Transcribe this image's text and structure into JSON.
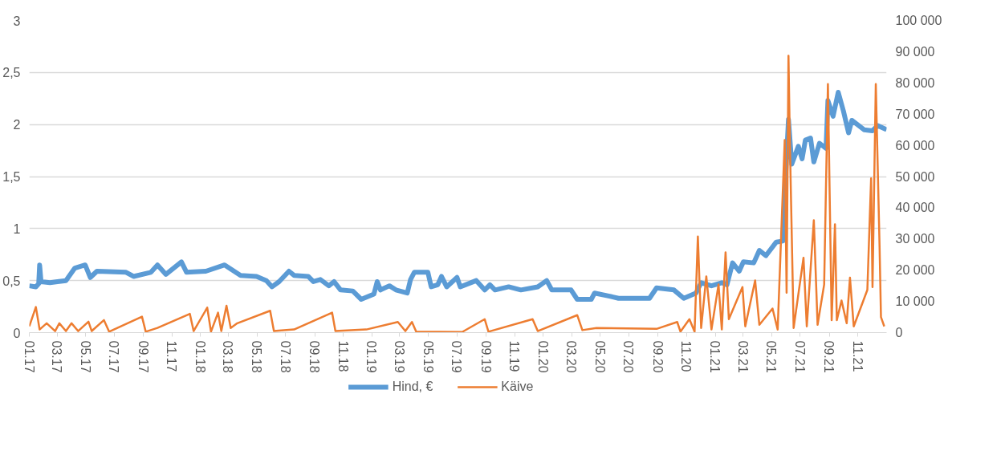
{
  "chart_data": {
    "type": "line",
    "grid": "y",
    "legend": "bottom",
    "xlim": [
      "2017-01-01",
      "2022-01-01"
    ],
    "xticks": [
      {
        "value": "2017-01-01",
        "label": "01.17"
      },
      {
        "value": "2017-03-01",
        "label": "03.17"
      },
      {
        "value": "2017-05-01",
        "label": "05.17"
      },
      {
        "value": "2017-07-01",
        "label": "07.17"
      },
      {
        "value": "2017-09-01",
        "label": "09.17"
      },
      {
        "value": "2017-11-01",
        "label": "11.17"
      },
      {
        "value": "2018-01-01",
        "label": "01.18"
      },
      {
        "value": "2018-03-01",
        "label": "03.18"
      },
      {
        "value": "2018-05-01",
        "label": "05.18"
      },
      {
        "value": "2018-07-01",
        "label": "07.18"
      },
      {
        "value": "2018-09-01",
        "label": "09.18"
      },
      {
        "value": "2018-11-01",
        "label": "11.18"
      },
      {
        "value": "2019-01-01",
        "label": "01.19"
      },
      {
        "value": "2019-03-01",
        "label": "03.19"
      },
      {
        "value": "2019-05-01",
        "label": "05.19"
      },
      {
        "value": "2019-07-01",
        "label": "07.19"
      },
      {
        "value": "2019-09-01",
        "label": "09.19"
      },
      {
        "value": "2019-11-01",
        "label": "11.19"
      },
      {
        "value": "2020-01-01",
        "label": "01.20"
      },
      {
        "value": "2020-03-01",
        "label": "03.20"
      },
      {
        "value": "2020-05-01",
        "label": "05.20"
      },
      {
        "value": "2020-07-01",
        "label": "07.20"
      },
      {
        "value": "2020-09-01",
        "label": "09.20"
      },
      {
        "value": "2020-11-01",
        "label": "11.20"
      },
      {
        "value": "2021-01-01",
        "label": "01.21"
      },
      {
        "value": "2021-03-01",
        "label": "03.21"
      },
      {
        "value": "2021-05-01",
        "label": "05.21"
      },
      {
        "value": "2021-07-01",
        "label": "07.21"
      },
      {
        "value": "2021-09-01",
        "label": "09.21"
      },
      {
        "value": "2021-11-01",
        "label": "11.21"
      }
    ],
    "ylim": [
      0,
      3
    ],
    "yticks": [
      0,
      {
        "value": 0.5,
        "label": "0,5"
      },
      1,
      {
        "value": 1.5,
        "label": "1,5"
      },
      2,
      {
        "value": 2.5,
        "label": "2,5"
      },
      3
    ],
    "y2lim": [
      0,
      100000
    ],
    "y2ticks": [
      {
        "value": 0,
        "label": "0"
      },
      {
        "value": 10000,
        "label": "10 000"
      },
      {
        "value": 20000,
        "label": "20 000"
      },
      {
        "value": 30000,
        "label": "30 000"
      },
      {
        "value": 40000,
        "label": "40 000"
      },
      {
        "value": 50000,
        "label": "50 000"
      },
      {
        "value": 60000,
        "label": "60 000"
      },
      {
        "value": 70000,
        "label": "70 000"
      },
      {
        "value": 80000,
        "label": "80 000"
      },
      {
        "value": 90000,
        "label": "90 000"
      },
      {
        "value": 100000,
        "label": "100 000"
      }
    ],
    "series": [
      {
        "name": "Hind, €",
        "color": "#5b9bd5",
        "x": [
          "2017-01-01",
          "2017-01-15",
          "2017-01-21",
          "2017-01-23",
          "2017-01-26",
          "2017-02-14",
          "2017-03-02",
          "2017-03-20",
          "2017-04-08",
          "2017-04-30",
          "2017-05-11",
          "2017-05-25",
          "2017-07-26",
          "2017-08-11",
          "2017-09-17",
          "2017-10-01",
          "2017-10-19",
          "2017-11-21",
          "2017-12-02",
          "2018-01-12",
          "2018-02-21",
          "2018-03-27",
          "2018-04-30",
          "2018-05-21",
          "2018-06-02",
          "2018-06-17",
          "2018-07-08",
          "2018-07-19",
          "2018-08-18",
          "2018-08-29",
          "2018-09-13",
          "2018-10-01",
          "2018-10-12",
          "2018-10-26",
          "2018-11-21",
          "2018-12-09",
          "2019-01-05",
          "2019-01-12",
          "2019-01-19",
          "2019-02-07",
          "2019-02-21",
          "2019-03-17",
          "2019-03-24",
          "2019-04-01",
          "2019-04-30",
          "2019-05-07",
          "2019-05-21",
          "2019-05-29",
          "2019-06-09",
          "2019-07-01",
          "2019-07-08",
          "2019-08-11",
          "2019-08-29",
          "2019-09-09",
          "2019-09-20",
          "2019-10-19",
          "2019-11-14",
          "2019-12-20",
          "2020-01-08",
          "2020-01-19",
          "2020-02-29",
          "2020-03-13",
          "2020-04-12",
          "2020-04-19",
          "2020-05-21",
          "2020-06-09",
          "2020-08-14",
          "2020-08-29",
          "2020-10-05",
          "2020-10-26",
          "2020-11-21",
          "2020-12-02",
          "2020-12-24",
          "2021-01-15",
          "2021-01-26",
          "2021-02-07",
          "2021-02-21",
          "2021-03-02",
          "2021-03-24",
          "2021-04-05",
          "2021-04-19",
          "2021-05-11",
          "2021-05-25",
          "2021-05-29",
          "2021-06-06",
          "2021-06-13",
          "2021-06-27",
          "2021-07-05",
          "2021-07-12",
          "2021-07-23",
          "2021-07-30",
          "2021-08-11",
          "2021-08-25",
          "2021-08-29",
          "2021-09-09",
          "2021-09-20",
          "2021-10-01",
          "2021-10-12",
          "2021-10-19",
          "2021-11-14",
          "2021-12-02",
          "2021-12-13",
          "2022-01-01"
        ],
        "values": [
          0.45,
          0.44,
          0.47,
          0.65,
          0.49,
          0.48,
          0.49,
          0.5,
          0.62,
          0.65,
          0.53,
          0.59,
          0.58,
          0.54,
          0.58,
          0.65,
          0.56,
          0.68,
          0.58,
          0.59,
          0.65,
          0.55,
          0.54,
          0.5,
          0.44,
          0.49,
          0.59,
          0.55,
          0.54,
          0.49,
          0.51,
          0.45,
          0.49,
          0.41,
          0.4,
          0.32,
          0.37,
          0.49,
          0.41,
          0.45,
          0.41,
          0.38,
          0.51,
          0.58,
          0.58,
          0.44,
          0.46,
          0.54,
          0.44,
          0.53,
          0.44,
          0.5,
          0.41,
          0.46,
          0.41,
          0.44,
          0.41,
          0.44,
          0.5,
          0.41,
          0.41,
          0.32,
          0.32,
          0.38,
          0.35,
          0.33,
          0.33,
          0.43,
          0.41,
          0.33,
          0.38,
          0.48,
          0.45,
          0.48,
          0.46,
          0.67,
          0.59,
          0.68,
          0.67,
          0.79,
          0.74,
          0.87,
          0.88,
          1.33,
          2.05,
          1.62,
          1.79,
          1.67,
          1.85,
          1.87,
          1.64,
          1.82,
          1.77,
          2.23,
          2.08,
          2.31,
          2.13,
          1.92,
          2.04,
          1.95,
          1.94,
          1.99,
          1.95
        ]
      },
      {
        "name": "Käive",
        "color": "#ed7d31",
        "axis": "y2",
        "x": [
          "2017-01-01",
          "2017-01-15",
          "2017-01-23",
          "2017-02-07",
          "2017-02-25",
          "2017-03-06",
          "2017-03-20",
          "2017-04-01",
          "2017-04-15",
          "2017-05-07",
          "2017-05-14",
          "2017-06-09",
          "2017-06-20",
          "2017-08-29",
          "2017-09-06",
          "2017-10-01",
          "2017-12-09",
          "2017-12-17",
          "2018-01-15",
          "2018-01-23",
          "2018-02-07",
          "2018-02-14",
          "2018-02-25",
          "2018-03-06",
          "2018-03-20",
          "2018-05-29",
          "2018-06-06",
          "2018-07-19",
          "2018-10-08",
          "2018-10-15",
          "2018-12-20",
          "2019-02-25",
          "2019-03-13",
          "2019-03-27",
          "2019-04-05",
          "2019-07-12",
          "2019-08-29",
          "2019-09-06",
          "2019-12-09",
          "2019-12-20",
          "2020-03-13",
          "2020-03-24",
          "2020-04-23",
          "2020-08-29",
          "2020-10-12",
          "2020-10-19",
          "2020-11-07",
          "2020-11-18",
          "2020-11-25",
          "2020-12-02",
          "2020-12-13",
          "2020-12-24",
          "2021-01-08",
          "2021-01-15",
          "2021-01-23",
          "2021-01-30",
          "2021-02-28",
          "2021-03-06",
          "2021-03-27",
          "2021-04-05",
          "2021-05-03",
          "2021-05-14",
          "2021-05-29",
          "2021-06-02",
          "2021-06-06",
          "2021-06-09",
          "2021-06-17",
          "2021-07-08",
          "2021-07-15",
          "2021-07-30",
          "2021-08-07",
          "2021-08-21",
          "2021-08-29",
          "2021-09-06",
          "2021-09-13",
          "2021-09-17",
          "2021-09-27",
          "2021-10-08",
          "2021-10-15",
          "2021-10-23",
          "2021-11-21",
          "2021-11-29",
          "2021-12-02",
          "2021-12-09",
          "2021-12-17",
          "2021-12-20",
          "2021-12-27"
        ],
        "values": [
          2000,
          8200,
          1000,
          3000,
          500,
          3000,
          500,
          3000,
          500,
          3500,
          500,
          4000,
          300,
          5100,
          300,
          1500,
          6000,
          500,
          8000,
          300,
          6400,
          500,
          8600,
          1500,
          3000,
          7000,
          500,
          1000,
          6400,
          500,
          1000,
          3400,
          500,
          3400,
          300,
          200,
          4300,
          300,
          4300,
          500,
          5600,
          800,
          1500,
          1200,
          3400,
          300,
          4300,
          300,
          30800,
          1500,
          18000,
          1000,
          15400,
          1000,
          25700,
          4300,
          14600,
          2000,
          16700,
          2500,
          7700,
          1000,
          61700,
          12800,
          88700,
          60800,
          1500,
          24000,
          2000,
          36000,
          2500,
          15400,
          79600,
          4000,
          34700,
          4000,
          10300,
          3000,
          17600,
          2000,
          13700,
          49400,
          14600,
          79600,
          27800,
          5000,
          2000
        ]
      }
    ]
  }
}
